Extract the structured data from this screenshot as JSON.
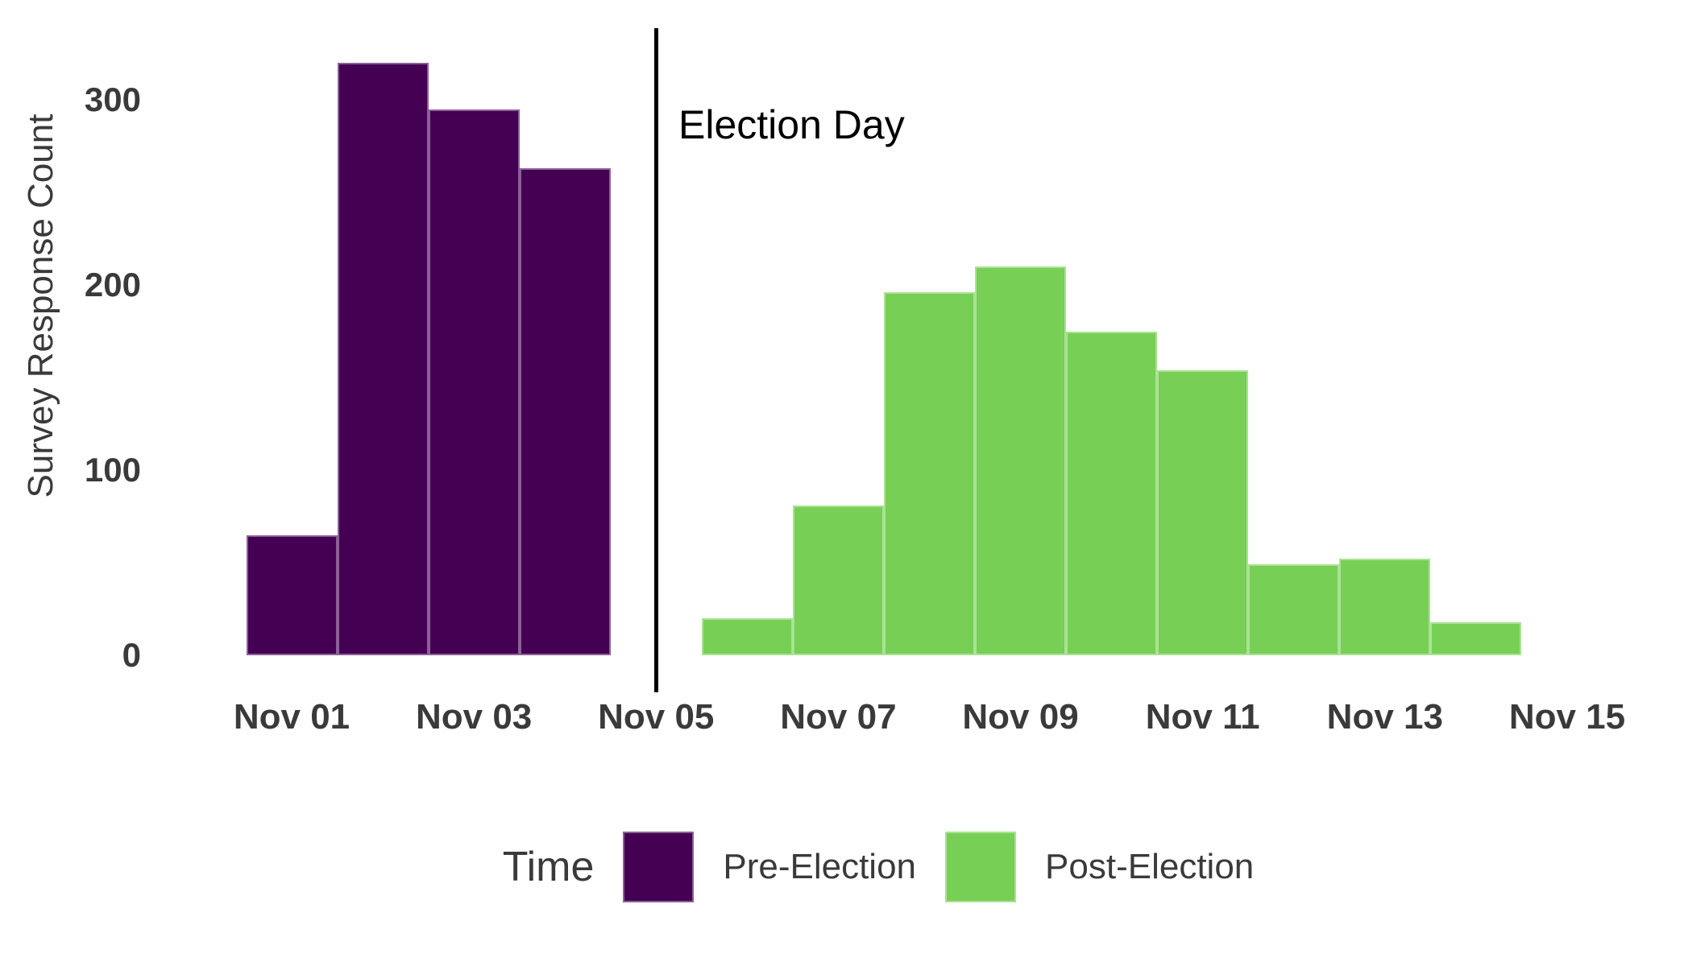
{
  "chart": {
    "y_axis": {
      "title": "Survey Response Count",
      "ticks": [
        {
          "label": "0",
          "value": 0
        },
        {
          "label": "100",
          "value": 100
        },
        {
          "label": "200",
          "value": 200
        },
        {
          "label": "300",
          "value": 300
        }
      ]
    },
    "x_axis": {
      "ticks": [
        {
          "label": "Nov 01",
          "day": 1
        },
        {
          "label": "Nov 03",
          "day": 3
        },
        {
          "label": "Nov 05",
          "day": 5
        },
        {
          "label": "Nov 07",
          "day": 7
        },
        {
          "label": "Nov 09",
          "day": 9
        },
        {
          "label": "Nov 11",
          "day": 11
        },
        {
          "label": "Nov 13",
          "day": 13
        },
        {
          "label": "Nov 15",
          "day": 15
        }
      ]
    },
    "annotation": {
      "label": "Election Day",
      "line_day": 5,
      "line_color": "#000000"
    },
    "legend": {
      "title": "Time",
      "entries": [
        {
          "label": "Pre-Election",
          "color": "#440154"
        },
        {
          "label": "Post-Election",
          "color": "#77d055"
        }
      ]
    }
  },
  "chart_data": {
    "type": "bar",
    "subtype": "histogram-daily-counts",
    "title": "",
    "xlabel": "",
    "ylabel": "Survey Response Count",
    "ylim": [
      0,
      340
    ],
    "x_unit": "Day of November",
    "grid": "off",
    "legend_position": "bottom",
    "bin_width_days": 1,
    "series": [
      {
        "name": "Pre-Election",
        "color": "#440154",
        "points": [
          {
            "day": 1,
            "count": 65
          },
          {
            "day": 2,
            "count": 320
          },
          {
            "day": 3,
            "count": 295
          },
          {
            "day": 4,
            "count": 263
          }
        ]
      },
      {
        "name": "Post-Election",
        "color": "#77d055",
        "points": [
          {
            "day": 6,
            "count": 20
          },
          {
            "day": 7,
            "count": 81
          },
          {
            "day": 8,
            "count": 196
          },
          {
            "day": 9,
            "count": 210
          },
          {
            "day": 10,
            "count": 175
          },
          {
            "day": 11,
            "count": 154
          },
          {
            "day": 12,
            "count": 49
          },
          {
            "day": 13,
            "count": 52
          },
          {
            "day": 14,
            "count": 18
          }
        ]
      }
    ],
    "vline": {
      "day": 5,
      "label": "Election Day"
    }
  }
}
